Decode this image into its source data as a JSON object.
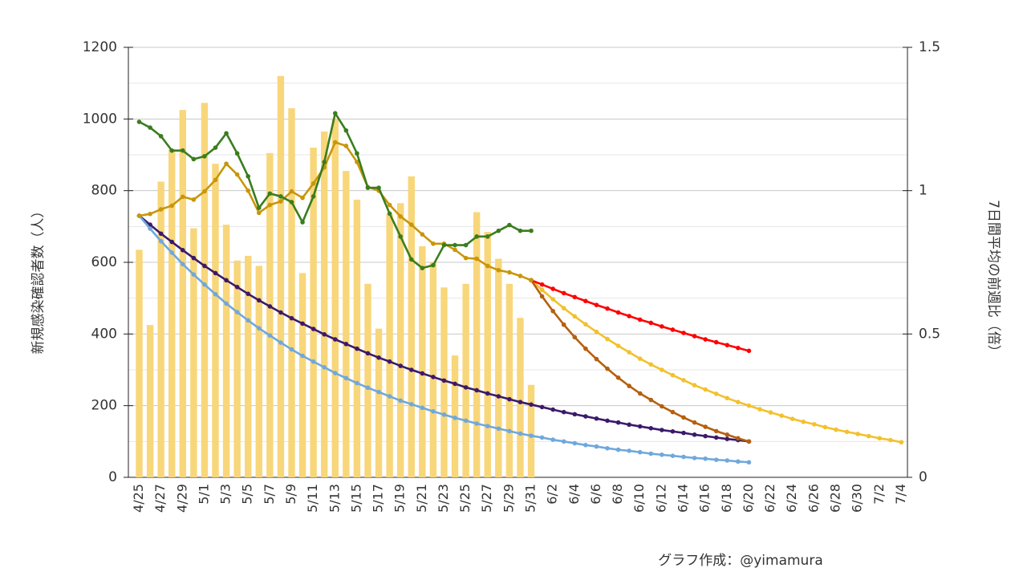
{
  "chart_data": {
    "type": "bar",
    "y_label": "新規感染確認者数（人）",
    "y2_label": "7日間平均の前週比（倍）",
    "credit": "グラフ作成：@yimamura",
    "categories": [
      "4/25",
      null,
      "4/27",
      null,
      "4/29",
      null,
      "5/1",
      null,
      "5/3",
      null,
      "5/5",
      null,
      "5/7",
      null,
      "5/9",
      null,
      "5/11",
      null,
      "5/13",
      null,
      "5/15",
      null,
      "5/17",
      null,
      "5/19",
      null,
      "5/21",
      null,
      "5/23",
      null,
      "5/25",
      null,
      "5/27",
      null,
      "5/29",
      null,
      "5/31",
      null,
      "6/2",
      null,
      "6/4",
      null,
      "6/6",
      null,
      "6/8",
      null,
      "6/10",
      null,
      "6/12",
      null,
      "6/14",
      null,
      "6/16",
      null,
      "6/18",
      null,
      "6/20",
      null,
      "6/22",
      null,
      "6/24",
      null,
      "6/26",
      null,
      "6/28",
      null,
      "6/30",
      null,
      "7/2",
      null,
      "7/4"
    ],
    "ylim": [
      0,
      1200
    ],
    "yticks": [
      0,
      200,
      400,
      600,
      800,
      1000,
      1200
    ],
    "y_minor_ticks": [
      100,
      300,
      500,
      700,
      900,
      1100
    ],
    "y2lim": [
      0,
      1.5
    ],
    "y2ticks": [
      0,
      0.5,
      1,
      1.5
    ],
    "grid": true,
    "series": [
      {
        "type": "bar",
        "color": "#f8d67a",
        "values": [
          635,
          425,
          825,
          915,
          1025,
          695,
          1045,
          875,
          705,
          605,
          618,
          590,
          905,
          1120,
          1030,
          570,
          920,
          965,
          1000,
          855,
          775,
          540,
          415,
          735,
          765,
          840,
          645,
          600,
          530,
          340,
          540,
          740,
          685,
          610,
          540,
          445,
          258,
          null,
          null,
          null,
          null,
          null,
          null,
          null,
          null,
          null,
          null,
          null,
          null,
          null,
          null,
          null,
          null,
          null,
          null,
          null,
          null,
          null,
          null,
          null,
          null,
          null,
          null,
          null,
          null,
          null,
          null,
          null,
          null,
          null,
          null
        ]
      },
      {
        "type": "line",
        "color": "#3b1a6b",
        "values": [
          730,
          705,
          680,
          657,
          634,
          612,
          590,
          570,
          550,
          531,
          512,
          494,
          477,
          460,
          444,
          429,
          414,
          399,
          385,
          372,
          359,
          346,
          334,
          323,
          311,
          300,
          290,
          280,
          270,
          261,
          251,
          243,
          234,
          226,
          218,
          210,
          203,
          196,
          189,
          182,
          176,
          170,
          164,
          158,
          153,
          147,
          142,
          137,
          132,
          128,
          124,
          119,
          115,
          111,
          107,
          104,
          100,
          null,
          null,
          null,
          null,
          null,
          null,
          null,
          null,
          null,
          null,
          null,
          null,
          null,
          null
        ]
      },
      {
        "type": "line",
        "color": "#6fa8dc",
        "values": [
          730,
          694,
          659,
          627,
          595,
          566,
          538,
          511,
          485,
          461,
          438,
          416,
          396,
          376,
          357,
          339,
          323,
          307,
          291,
          277,
          263,
          250,
          238,
          226,
          214,
          204,
          194,
          184,
          175,
          166,
          158,
          150,
          143,
          136,
          129,
          122,
          116,
          111,
          105,
          100,
          95,
          90,
          86,
          81,
          77,
          74,
          70,
          66,
          63,
          60,
          57,
          54,
          52,
          49,
          47,
          44,
          42,
          null,
          null,
          null,
          null,
          null,
          null,
          null,
          null,
          null,
          null,
          null,
          null,
          null,
          null
        ]
      },
      {
        "type": "line",
        "color": "#f2c12e",
        "values": [
          null,
          null,
          null,
          null,
          null,
          null,
          null,
          null,
          null,
          null,
          null,
          null,
          null,
          null,
          null,
          null,
          null,
          null,
          null,
          null,
          null,
          null,
          null,
          null,
          null,
          null,
          null,
          null,
          null,
          null,
          null,
          null,
          null,
          null,
          null,
          null,
          550,
          523,
          497,
          472,
          449,
          427,
          406,
          386,
          367,
          349,
          331,
          315,
          300,
          285,
          271,
          257,
          245,
          233,
          221,
          210,
          200,
          190,
          181,
          172,
          163,
          155,
          148,
          140,
          133,
          127,
          121,
          115,
          109,
          104,
          98
        ]
      },
      {
        "type": "line",
        "color": "#b5600f",
        "values": [
          null,
          null,
          null,
          null,
          null,
          null,
          null,
          null,
          null,
          null,
          null,
          null,
          null,
          null,
          null,
          null,
          null,
          null,
          null,
          null,
          null,
          null,
          null,
          null,
          null,
          null,
          null,
          null,
          null,
          null,
          null,
          null,
          null,
          null,
          null,
          null,
          550,
          505,
          464,
          426,
          391,
          359,
          330,
          303,
          278,
          255,
          234,
          216,
          198,
          182,
          167,
          153,
          141,
          129,
          119,
          109,
          100,
          null,
          null,
          null,
          null,
          null,
          null,
          null,
          null,
          null,
          null,
          null,
          null,
          null,
          null
        ]
      },
      {
        "type": "line",
        "color": "#ff0000",
        "values": [
          null,
          null,
          null,
          null,
          null,
          null,
          null,
          null,
          null,
          null,
          null,
          null,
          null,
          null,
          null,
          null,
          null,
          null,
          null,
          null,
          null,
          null,
          null,
          null,
          null,
          null,
          null,
          null,
          null,
          null,
          null,
          null,
          null,
          null,
          null,
          null,
          550,
          538,
          526,
          514,
          503,
          492,
          481,
          471,
          460,
          450,
          440,
          431,
          421,
          412,
          403,
          394,
          385,
          377,
          369,
          361,
          353,
          null,
          null,
          null,
          null,
          null,
          null,
          null,
          null,
          null,
          null,
          null,
          null,
          null,
          null
        ]
      },
      {
        "type": "line",
        "color": "#c8960a",
        "values": [
          730,
          735,
          748,
          758,
          783,
          775,
          798,
          830,
          875,
          845,
          800,
          738,
          760,
          770,
          798,
          780,
          820,
          865,
          935,
          925,
          880,
          810,
          800,
          760,
          728,
          705,
          678,
          652,
          652,
          635,
          612,
          610,
          590,
          578,
          572,
          562,
          550,
          null,
          null,
          null,
          null,
          null,
          null,
          null,
          null,
          null,
          null,
          null,
          null,
          null,
          null,
          null,
          null,
          null,
          null,
          null,
          null,
          null,
          null,
          null,
          null,
          null,
          null,
          null,
          null,
          null,
          null,
          null,
          null,
          null,
          null
        ]
      },
      {
        "type": "line",
        "axis": "y2",
        "color": "#3a7d1e",
        "values": [
          1.24,
          1.22,
          1.19,
          1.14,
          1.14,
          1.11,
          1.12,
          1.15,
          1.2,
          1.13,
          1.05,
          0.94,
          0.99,
          0.98,
          0.96,
          0.89,
          0.98,
          1.1,
          1.27,
          1.21,
          1.13,
          1.01,
          1.01,
          0.92,
          0.84,
          0.76,
          0.73,
          0.74,
          0.81,
          0.81,
          0.81,
          0.84,
          0.84,
          0.86,
          0.88,
          0.86,
          0.86,
          null,
          null,
          null,
          null,
          null,
          null,
          null,
          null,
          null,
          null,
          null,
          null,
          null,
          null,
          null,
          null,
          null,
          null,
          null,
          null,
          null,
          null,
          null,
          null,
          null,
          null,
          null,
          null,
          null,
          null,
          null,
          null,
          null,
          null
        ]
      }
    ]
  }
}
